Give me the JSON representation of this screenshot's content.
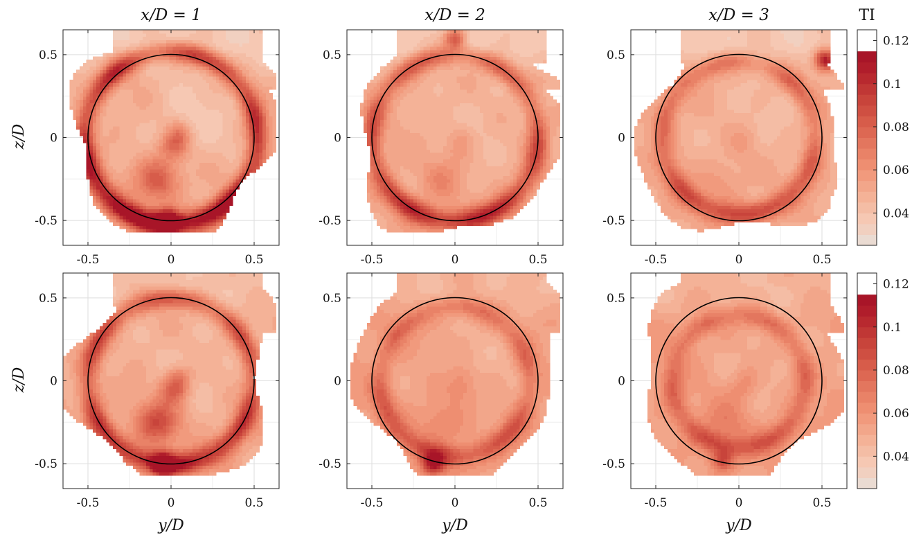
{
  "chart_data": {
    "type": "heatmap",
    "quantity": "TI",
    "colorbar_label": "TI",
    "colorbar_ticks": [
      0.04,
      0.06,
      0.08,
      0.1,
      0.12
    ],
    "colorbar_tick_labels": [
      "0.04",
      "0.06",
      "0.08",
      "0.1",
      "0.12"
    ],
    "colorbar_range": [
      0.025,
      0.125
    ],
    "levels": [
      0.025,
      0.03,
      0.035,
      0.04,
      0.045,
      0.05,
      0.055,
      0.06,
      0.065,
      0.07,
      0.075,
      0.08,
      0.085,
      0.09,
      0.095,
      0.1,
      0.105,
      0.11,
      0.115,
      0.12,
      0.125
    ],
    "colors": [
      "#eadbd2",
      "#f1d0c0",
      "#f6c8b3",
      "#f4bda5",
      "#f4b297",
      "#f2a68a",
      "#f19a7d",
      "#ee8e71",
      "#e98267",
      "#e3765e",
      "#dd6853",
      "#d75c4a",
      "#cf4f42",
      "#c8443b",
      "#c03735",
      "#b8292f",
      "#b01d2b",
      "#a81528"
    ],
    "xlabel": "y/D",
    "ylabel": "z/D",
    "xlim": [
      -0.65,
      0.65
    ],
    "ylim": [
      -0.65,
      0.65
    ],
    "xticks": [
      -0.5,
      0,
      0.5
    ],
    "xtick_labels": [
      "-0.5",
      "0",
      "0.5"
    ],
    "yticks": [
      -0.5,
      0,
      0.5
    ],
    "ytick_labels": [
      "-0.5",
      "0",
      "0.5"
    ],
    "grid": true,
    "rotor_circle_radius": 0.5,
    "column_titles": [
      "x/D = 1",
      "x/D = 2",
      "x/D = 3"
    ],
    "panels": [
      {
        "row": 1,
        "col": 1,
        "x_over_D": 1,
        "baseline": 0.05,
        "ring_peak": 0.095,
        "ring_radius": 0.52,
        "center_value": 0.045,
        "spiral_peak": 0.09,
        "hotspot": {
          "y": -0.02,
          "z": -0.5,
          "value": 0.12
        }
      },
      {
        "row": 1,
        "col": 2,
        "x_over_D": 2,
        "baseline": 0.05,
        "ring_peak": 0.082,
        "ring_radius": 0.5,
        "center_value": 0.055,
        "spiral_peak": 0.065,
        "hotspot": {
          "y": 0.0,
          "z": 0.6,
          "value": 0.095
        }
      },
      {
        "row": 1,
        "col": 3,
        "x_over_D": 3,
        "baseline": 0.05,
        "ring_peak": 0.075,
        "ring_radius": 0.46,
        "center_value": 0.05,
        "spiral_peak": 0.06,
        "hotspot": {
          "y": 0.52,
          "z": 0.47,
          "value": 0.12
        }
      },
      {
        "row": 2,
        "col": 1,
        "x_over_D": 1,
        "baseline": 0.05,
        "ring_peak": 0.085,
        "ring_radius": 0.5,
        "center_value": 0.05,
        "spiral_peak": 0.095,
        "hotspot": {
          "y": -0.05,
          "z": -0.5,
          "value": 0.115
        }
      },
      {
        "row": 2,
        "col": 2,
        "x_over_D": 2,
        "baseline": 0.055,
        "ring_peak": 0.075,
        "ring_radius": 0.45,
        "center_value": 0.06,
        "spiral_peak": 0.07,
        "hotspot": {
          "y": -0.13,
          "z": -0.5,
          "value": 0.105
        }
      },
      {
        "row": 2,
        "col": 3,
        "x_over_D": 3,
        "baseline": 0.055,
        "ring_peak": 0.075,
        "ring_radius": 0.4,
        "center_value": 0.065,
        "spiral_peak": 0.07,
        "hotspot": {
          "y": -0.1,
          "z": -0.48,
          "value": 0.085
        }
      }
    ]
  }
}
